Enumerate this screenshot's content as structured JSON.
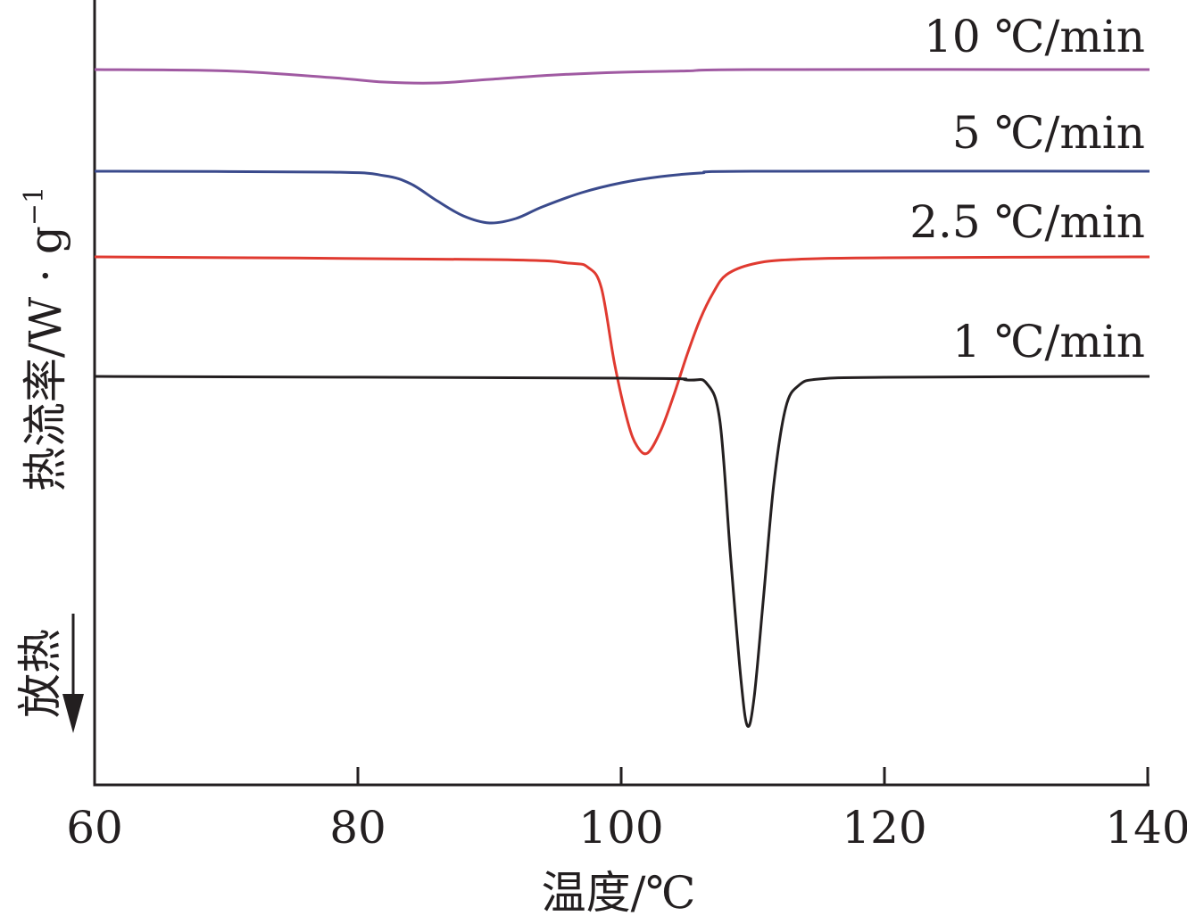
{
  "chart_data": {
    "type": "line",
    "xlabel": "温度/℃",
    "ylabel": "热流率/W · g",
    "ylabel_superscript": "−1",
    "direction_label": "放热",
    "xlim": [
      60,
      140
    ],
    "x_ticks": [
      60,
      80,
      100,
      120,
      140
    ],
    "x_tick_labels": [
      "60",
      "80",
      "100",
      "120",
      "140"
    ],
    "y_ticks_shown": false,
    "grid": false,
    "legend": "inline labels above each curve (right)",
    "series": [
      {
        "name": "10 ℃/min",
        "color": "#a05aa2",
        "baseline": 78,
        "points": [
          [
            60,
            0
          ],
          [
            70,
            1.5
          ],
          [
            78,
            9
          ],
          [
            82,
            14
          ],
          [
            86,
            15
          ],
          [
            90,
            11
          ],
          [
            95,
            6
          ],
          [
            100,
            3
          ],
          [
            105,
            1.5
          ],
          [
            110,
            0
          ],
          [
            140,
            0
          ]
        ]
      },
      {
        "name": "5 ℃/min",
        "color": "#3a4a8c",
        "baseline": 192,
        "points": [
          [
            60,
            0
          ],
          [
            78,
            1
          ],
          [
            82,
            5
          ],
          [
            84,
            14
          ],
          [
            86,
            33
          ],
          [
            88,
            50
          ],
          [
            90,
            58
          ],
          [
            92,
            53
          ],
          [
            94,
            40
          ],
          [
            97,
            24
          ],
          [
            100,
            13
          ],
          [
            103,
            6
          ],
          [
            106,
            2
          ],
          [
            110,
            0
          ],
          [
            140,
            0
          ]
        ]
      },
      {
        "name": "2.5 ℃/min",
        "color": "#e03a30",
        "baseline": 288,
        "points": [
          [
            60,
            0
          ],
          [
            90,
            3
          ],
          [
            96,
            7
          ],
          [
            97.5,
            12
          ],
          [
            98.5,
            35
          ],
          [
            99.5,
            120
          ],
          [
            100.5,
            185
          ],
          [
            101.2,
            212
          ],
          [
            102,
            220
          ],
          [
            103,
            195
          ],
          [
            104,
            155
          ],
          [
            105,
            110
          ],
          [
            106,
            70
          ],
          [
            107,
            40
          ],
          [
            108,
            20
          ],
          [
            110,
            8
          ],
          [
            113,
            3
          ],
          [
            120,
            1
          ],
          [
            140,
            0
          ]
        ]
      },
      {
        "name": "1 ℃/min",
        "color": "#231f20",
        "baseline": 422,
        "points": [
          [
            60,
            0
          ],
          [
            100,
            2
          ],
          [
            105,
            4
          ],
          [
            106.5,
            8
          ],
          [
            107.5,
            50
          ],
          [
            108.3,
            200
          ],
          [
            109.1,
            340
          ],
          [
            109.6,
            392
          ],
          [
            110.1,
            360
          ],
          [
            110.8,
            250
          ],
          [
            111.6,
            120
          ],
          [
            112.5,
            35
          ],
          [
            113.5,
            10
          ],
          [
            115,
            3
          ],
          [
            120,
            1
          ],
          [
            140,
            0
          ]
        ]
      }
    ]
  }
}
